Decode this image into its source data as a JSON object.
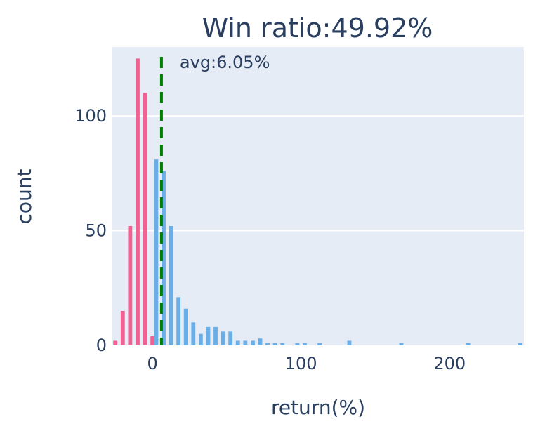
{
  "chart_data": {
    "type": "bar",
    "title": "Win ratio:49.92%",
    "xlabel": "return(%)",
    "ylabel": "count",
    "xlim": [
      -27,
      250
    ],
    "ylim": [
      0,
      130
    ],
    "x_ticks": [
      0,
      100,
      200
    ],
    "y_ticks": [
      0,
      50,
      100
    ],
    "grid": true,
    "series": [
      {
        "color": "#f06292",
        "points": [
          {
            "x": -25,
            "y": 2
          },
          {
            "x": -20,
            "y": 15
          },
          {
            "x": -15,
            "y": 52
          },
          {
            "x": -10,
            "y": 125
          },
          {
            "x": -5,
            "y": 110
          },
          {
            "x": 0,
            "y": 4
          }
        ]
      },
      {
        "color": "#6aaee8",
        "points": [
          {
            "x": 2.5,
            "y": 81
          },
          {
            "x": 7.5,
            "y": 76
          },
          {
            "x": 12.5,
            "y": 52
          },
          {
            "x": 17.5,
            "y": 21
          },
          {
            "x": 22.5,
            "y": 16
          },
          {
            "x": 27.5,
            "y": 10
          },
          {
            "x": 32.5,
            "y": 5
          },
          {
            "x": 37.5,
            "y": 8
          },
          {
            "x": 42.5,
            "y": 8
          },
          {
            "x": 47.5,
            "y": 6
          },
          {
            "x": 52.5,
            "y": 6
          },
          {
            "x": 57.5,
            "y": 2
          },
          {
            "x": 62.5,
            "y": 2
          },
          {
            "x": 67.5,
            "y": 2
          },
          {
            "x": 72.5,
            "y": 3
          },
          {
            "x": 77.5,
            "y": 1
          },
          {
            "x": 82.5,
            "y": 1
          },
          {
            "x": 87.5,
            "y": 1
          },
          {
            "x": 97.5,
            "y": 1
          },
          {
            "x": 102.5,
            "y": 1
          },
          {
            "x": 112.5,
            "y": 1
          },
          {
            "x": 132.5,
            "y": 2
          },
          {
            "x": 167.5,
            "y": 1
          },
          {
            "x": 212.5,
            "y": 1
          },
          {
            "x": 247.5,
            "y": 1
          }
        ]
      }
    ],
    "avg_line": {
      "x": 6.05,
      "label": "avg:6.05%",
      "color": "#008000"
    }
  }
}
